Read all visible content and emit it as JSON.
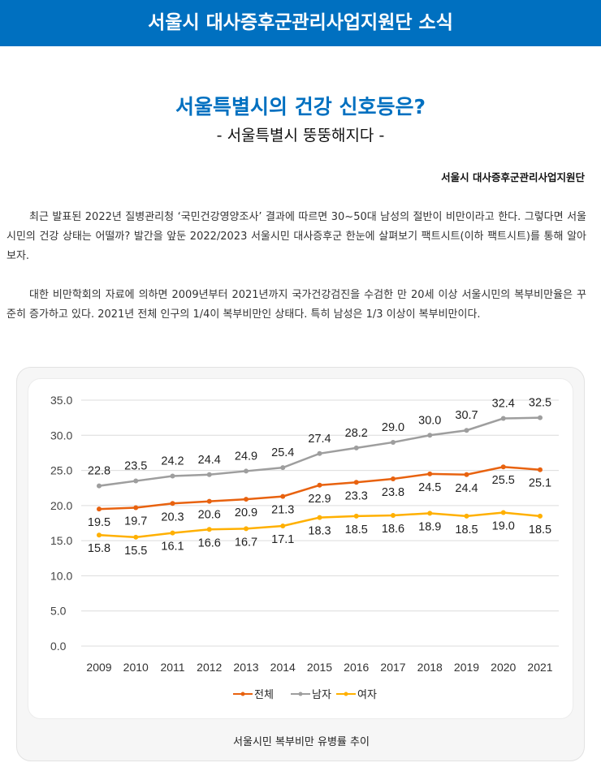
{
  "banner": "서울시 대사증후군관리사업지원단 소식",
  "title": "서울특별시의 건강 신호등은?",
  "subtitle": "- 서울특별시 뚱뚱해지다 -",
  "org": "서울시 대사증후군관리사업지원단",
  "paragraphs": [
    "최근 발표된 2022년 질병관리청 ‘국민건강영양조사’ 결과에 따르면 30~50대 남성의 절반이 비만이라고 한다. 그렇다면 서울시민의 건강 상태는 어떨까? 발간을 앞둔 2022/2023 서울시민 대사증후군 한눈에 살펴보기 팩트시트(이하 팩트시트)를 통해 알아보자.",
    "대한 비만학회의 자료에 의하면 2009년부터 2021년까지 국가건강검진을 수검한 만 20세 이상 서울시민의 복부비만율은 꾸준히 증가하고 있다. 2021년 전체 인구의 1/4이 복부비만인 상태다. 특히 남성은 1/3 이상이 복부비만이다."
  ],
  "caption": "서울시민 복부비만 유병률 추이",
  "chart_data": {
    "type": "line",
    "x": [
      "2009",
      "2010",
      "2011",
      "2012",
      "2013",
      "2014",
      "2015",
      "2016",
      "2017",
      "2018",
      "2019",
      "2020",
      "2021"
    ],
    "ylim": [
      0,
      35
    ],
    "yticks": [
      "0.0",
      "5.0",
      "10.0",
      "15.0",
      "20.0",
      "25.0",
      "30.0",
      "35.0"
    ],
    "grid": true,
    "legend": "bottom",
    "series": [
      {
        "name": "전체",
        "color": "#e8620f",
        "label_pos": "below",
        "values": [
          19.5,
          19.7,
          20.3,
          20.6,
          20.9,
          21.3,
          22.9,
          23.3,
          23.8,
          24.5,
          24.4,
          25.5,
          25.1
        ]
      },
      {
        "name": "남자",
        "color": "#9e9e9e",
        "label_pos": "above",
        "values": [
          22.8,
          23.5,
          24.2,
          24.4,
          24.9,
          25.4,
          27.4,
          28.2,
          29.0,
          30.0,
          30.7,
          32.4,
          32.5
        ]
      },
      {
        "name": "여자",
        "color": "#ffb000",
        "label_pos": "below",
        "values": [
          15.8,
          15.5,
          16.1,
          16.6,
          16.7,
          17.1,
          18.3,
          18.5,
          18.6,
          18.9,
          18.5,
          19.0,
          18.5
        ]
      }
    ]
  }
}
